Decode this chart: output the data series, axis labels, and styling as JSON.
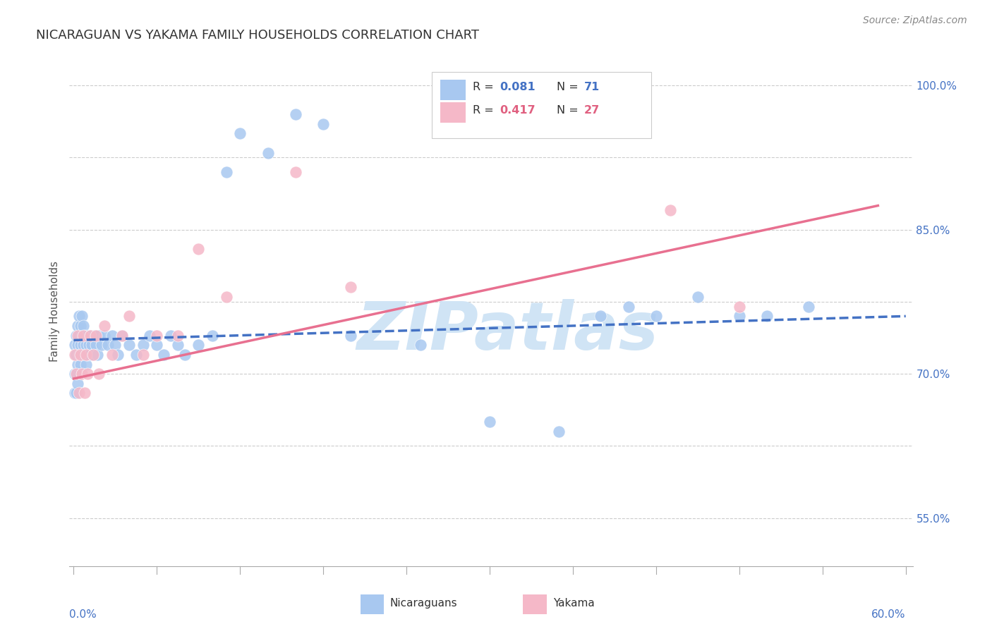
{
  "title": "NICARAGUAN VS YAKAMA FAMILY HOUSEHOLDS CORRELATION CHART",
  "source_text": "Source: ZipAtlas.com",
  "ylabel": "Family Households",
  "ylim": [
    0.5,
    1.03
  ],
  "xlim": [
    -0.003,
    0.605
  ],
  "yticks": [
    0.55,
    0.7,
    0.85,
    1.0
  ],
  "ytick_labels": [
    "55.0%",
    "70.0%",
    "85.0%",
    "100.0%"
  ],
  "yticks_grid": [
    0.55,
    0.625,
    0.7,
    0.775,
    0.85,
    0.925,
    1.0
  ],
  "blue_color": "#A8C8F0",
  "pink_color": "#F5B8C8",
  "blue_line_color": "#4472C4",
  "pink_line_color": "#E87090",
  "tick_label_color": "#4472C4",
  "watermark": "ZIPatlas",
  "watermark_color": "#D0E4F5",
  "blue_x": [
    0.001,
    0.001,
    0.001,
    0.002,
    0.002,
    0.002,
    0.002,
    0.003,
    0.003,
    0.003,
    0.003,
    0.004,
    0.004,
    0.004,
    0.005,
    0.005,
    0.005,
    0.006,
    0.006,
    0.006,
    0.007,
    0.007,
    0.008,
    0.008,
    0.009,
    0.009,
    0.01,
    0.01,
    0.011,
    0.012,
    0.012,
    0.013,
    0.014,
    0.015,
    0.016,
    0.017,
    0.018,
    0.02,
    0.022,
    0.025,
    0.028,
    0.03,
    0.032,
    0.035,
    0.04,
    0.045,
    0.05,
    0.055,
    0.06,
    0.065,
    0.07,
    0.075,
    0.08,
    0.09,
    0.1,
    0.11,
    0.12,
    0.14,
    0.16,
    0.18,
    0.2,
    0.25,
    0.3,
    0.35,
    0.38,
    0.4,
    0.42,
    0.45,
    0.48,
    0.5,
    0.53
  ],
  "blue_y": [
    0.73,
    0.7,
    0.68,
    0.74,
    0.72,
    0.7,
    0.68,
    0.75,
    0.73,
    0.71,
    0.69,
    0.76,
    0.74,
    0.72,
    0.75,
    0.73,
    0.71,
    0.76,
    0.74,
    0.72,
    0.75,
    0.73,
    0.74,
    0.72,
    0.73,
    0.71,
    0.74,
    0.72,
    0.73,
    0.74,
    0.72,
    0.73,
    0.72,
    0.74,
    0.73,
    0.72,
    0.74,
    0.73,
    0.74,
    0.73,
    0.74,
    0.73,
    0.72,
    0.74,
    0.73,
    0.72,
    0.73,
    0.74,
    0.73,
    0.72,
    0.74,
    0.73,
    0.72,
    0.73,
    0.74,
    0.91,
    0.95,
    0.93,
    0.97,
    0.96,
    0.74,
    0.73,
    0.65,
    0.64,
    0.76,
    0.77,
    0.76,
    0.78,
    0.76,
    0.76,
    0.77
  ],
  "pink_x": [
    0.001,
    0.002,
    0.003,
    0.004,
    0.005,
    0.006,
    0.007,
    0.008,
    0.009,
    0.01,
    0.012,
    0.014,
    0.016,
    0.018,
    0.022,
    0.028,
    0.035,
    0.04,
    0.05,
    0.06,
    0.075,
    0.09,
    0.11,
    0.16,
    0.2,
    0.43,
    0.48
  ],
  "pink_y": [
    0.72,
    0.7,
    0.74,
    0.68,
    0.72,
    0.7,
    0.74,
    0.68,
    0.72,
    0.7,
    0.74,
    0.72,
    0.74,
    0.7,
    0.75,
    0.72,
    0.74,
    0.76,
    0.72,
    0.74,
    0.74,
    0.83,
    0.78,
    0.91,
    0.79,
    0.87,
    0.77
  ],
  "blue_trend_x0": 0.0,
  "blue_trend_x1": 0.6,
  "blue_trend_y0": 0.735,
  "blue_trend_y1": 0.76,
  "pink_trend_x0": 0.0,
  "pink_trend_x1": 0.58,
  "pink_trend_y0": 0.695,
  "pink_trend_y1": 0.875
}
